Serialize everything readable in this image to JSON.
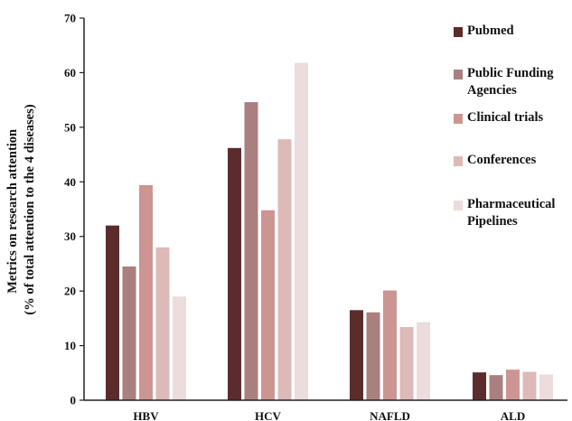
{
  "chart_data": {
    "type": "bar",
    "title": "",
    "xlabel": "",
    "ylabel": [
      "Metrics on research attention",
      "(% of total attention to the 4 diseases)"
    ],
    "ylim": [
      0,
      70
    ],
    "yticks": [
      0,
      10,
      20,
      30,
      40,
      50,
      60,
      70
    ],
    "categories": [
      "HBV",
      "HCV",
      "NAFLD",
      "ALD"
    ],
    "grid": false,
    "legend_position": "right",
    "series": [
      {
        "name": "Pubmed",
        "label_lines": [
          "Pubmed"
        ],
        "color": "#5c2b2b",
        "values": [
          32,
          46.2,
          16.5,
          5.1
        ]
      },
      {
        "name": "Public Funding Agencies",
        "label_lines": [
          "Public Funding",
          "Agencies"
        ],
        "color": "#a9807f",
        "values": [
          24.5,
          54.6,
          16.1,
          4.6
        ]
      },
      {
        "name": "Clinical trials",
        "label_lines": [
          "Clinical trials"
        ],
        "color": "#cc9592",
        "values": [
          39.4,
          34.8,
          20.1,
          5.6
        ]
      },
      {
        "name": "Conferences",
        "label_lines": [
          "Conferences"
        ],
        "color": "#ddb9b8",
        "values": [
          28,
          47.8,
          13.4,
          5.2
        ]
      },
      {
        "name": "Pharmaceutical Pipelines",
        "label_lines": [
          "Pharmaceutical",
          "Pipelines"
        ],
        "color": "#ecdcdb",
        "values": [
          19,
          61.8,
          14.3,
          4.7
        ]
      }
    ]
  }
}
